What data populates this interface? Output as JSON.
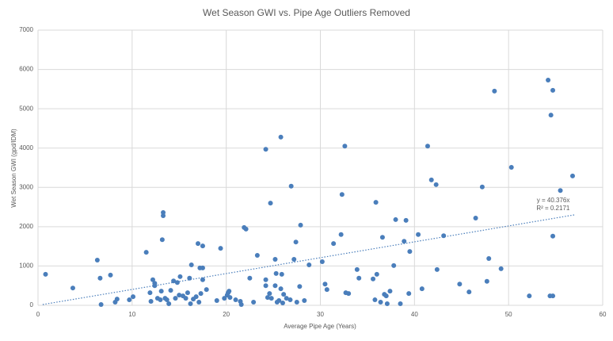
{
  "chart_data": {
    "type": "scatter",
    "title": "Wet Season GWI vs. Pipe Age Outliers Removed",
    "x_label": "Average Pipe Age (Years)",
    "y_label": "Wet Season GWI (gpd/IDM)",
    "color": "#4a7ebb",
    "x": [
      0.8,
      3.7,
      6.3,
      6.6,
      6.7,
      7.7,
      8.2,
      8.4,
      9.7,
      10.1,
      11.5,
      11.9,
      12,
      12.2,
      12.4,
      12.4,
      12.7,
      13,
      13.1,
      13.2,
      13.3,
      13.3,
      13.5,
      13.7,
      13.9,
      14.1,
      14.4,
      14.6,
      14.8,
      15,
      15.1,
      15.4,
      15.7,
      15.9,
      16.1,
      16.2,
      16.3,
      16.5,
      16.8,
      17,
      17.1,
      17.2,
      17.3,
      17.5,
      17.5,
      17.5,
      17.9,
      19,
      19.4,
      19.8,
      20.1,
      20.2,
      20.3,
      20.4,
      21,
      21.5,
      21.6,
      21.9,
      22.1,
      22.5,
      22.9,
      23.3,
      24.2,
      24.2,
      24.2,
      24.4,
      24.6,
      24.7,
      24.8,
      25.2,
      25.2,
      25.3,
      25.4,
      25.6,
      25.8,
      25.8,
      25.9,
      26,
      26.1,
      26.4,
      26.8,
      26.9,
      27.2,
      27.4,
      27.5,
      27.8,
      27.9,
      28.3,
      28.8,
      30.2,
      30.5,
      30.7,
      31.4,
      32.2,
      32.3,
      32.6,
      32.7,
      33,
      33.9,
      34.1,
      35.6,
      35.8,
      35.9,
      36,
      36.4,
      36.6,
      36.8,
      37,
      37.1,
      37.4,
      37.8,
      38,
      38.5,
      38.9,
      39.1,
      39.4,
      39.5,
      40.4,
      40.8,
      41.4,
      41.8,
      42.3,
      42.4,
      43.1,
      44.8,
      45.8,
      46.5,
      47.2,
      47.7,
      47.9,
      48.5,
      49.2,
      50.3,
      52.2,
      54.2,
      54.4,
      54.5,
      54.7,
      54.7,
      54.7,
      55.5,
      56.8
    ],
    "values": [
      790,
      440,
      1150,
      690,
      20,
      770,
      80,
      160,
      140,
      220,
      1350,
      320,
      100,
      650,
      500,
      560,
      180,
      140,
      360,
      1670,
      2280,
      2360,
      180,
      140,
      40,
      380,
      620,
      180,
      580,
      260,
      730,
      240,
      180,
      320,
      690,
      40,
      1030,
      160,
      220,
      1570,
      80,
      950,
      300,
      1510,
      650,
      950,
      400,
      120,
      1450,
      180,
      260,
      320,
      360,
      200,
      140,
      100,
      20,
      1980,
      1940,
      690,
      80,
      1270,
      3970,
      650,
      500,
      200,
      300,
      2600,
      180,
      1170,
      500,
      810,
      80,
      120,
      4280,
      420,
      790,
      60,
      280,
      180,
      140,
      3030,
      1170,
      1610,
      80,
      480,
      2040,
      120,
      1030,
      1110,
      540,
      400,
      1570,
      1800,
      2820,
      4050,
      320,
      300,
      910,
      690,
      670,
      140,
      2620,
      790,
      80,
      1730,
      280,
      240,
      40,
      360,
      1010,
      2180,
      40,
      1630,
      2160,
      300,
      1370,
      1800,
      420,
      4050,
      3190,
      3070,
      910,
      1770,
      540,
      340,
      2220,
      3010,
      610,
      1190,
      5450,
      930,
      3510,
      240,
      5730,
      240,
      4840,
      240,
      5470,
      1760,
      2920,
      3290
    ],
    "xlim": [
      0,
      60
    ],
    "xticks": [
      0,
      10,
      20,
      30,
      40,
      50,
      60
    ],
    "ylim": [
      0,
      7000
    ],
    "yticks": [
      0,
      1000,
      2000,
      3000,
      4000,
      5000,
      6000,
      7000
    ],
    "grid": true,
    "trendline": {
      "slope": 40.376,
      "x": [
        0.5,
        57
      ],
      "color": "#4a7ebb",
      "label": "y = 40.376x",
      "r2_label": "R² = 0.2171"
    }
  }
}
